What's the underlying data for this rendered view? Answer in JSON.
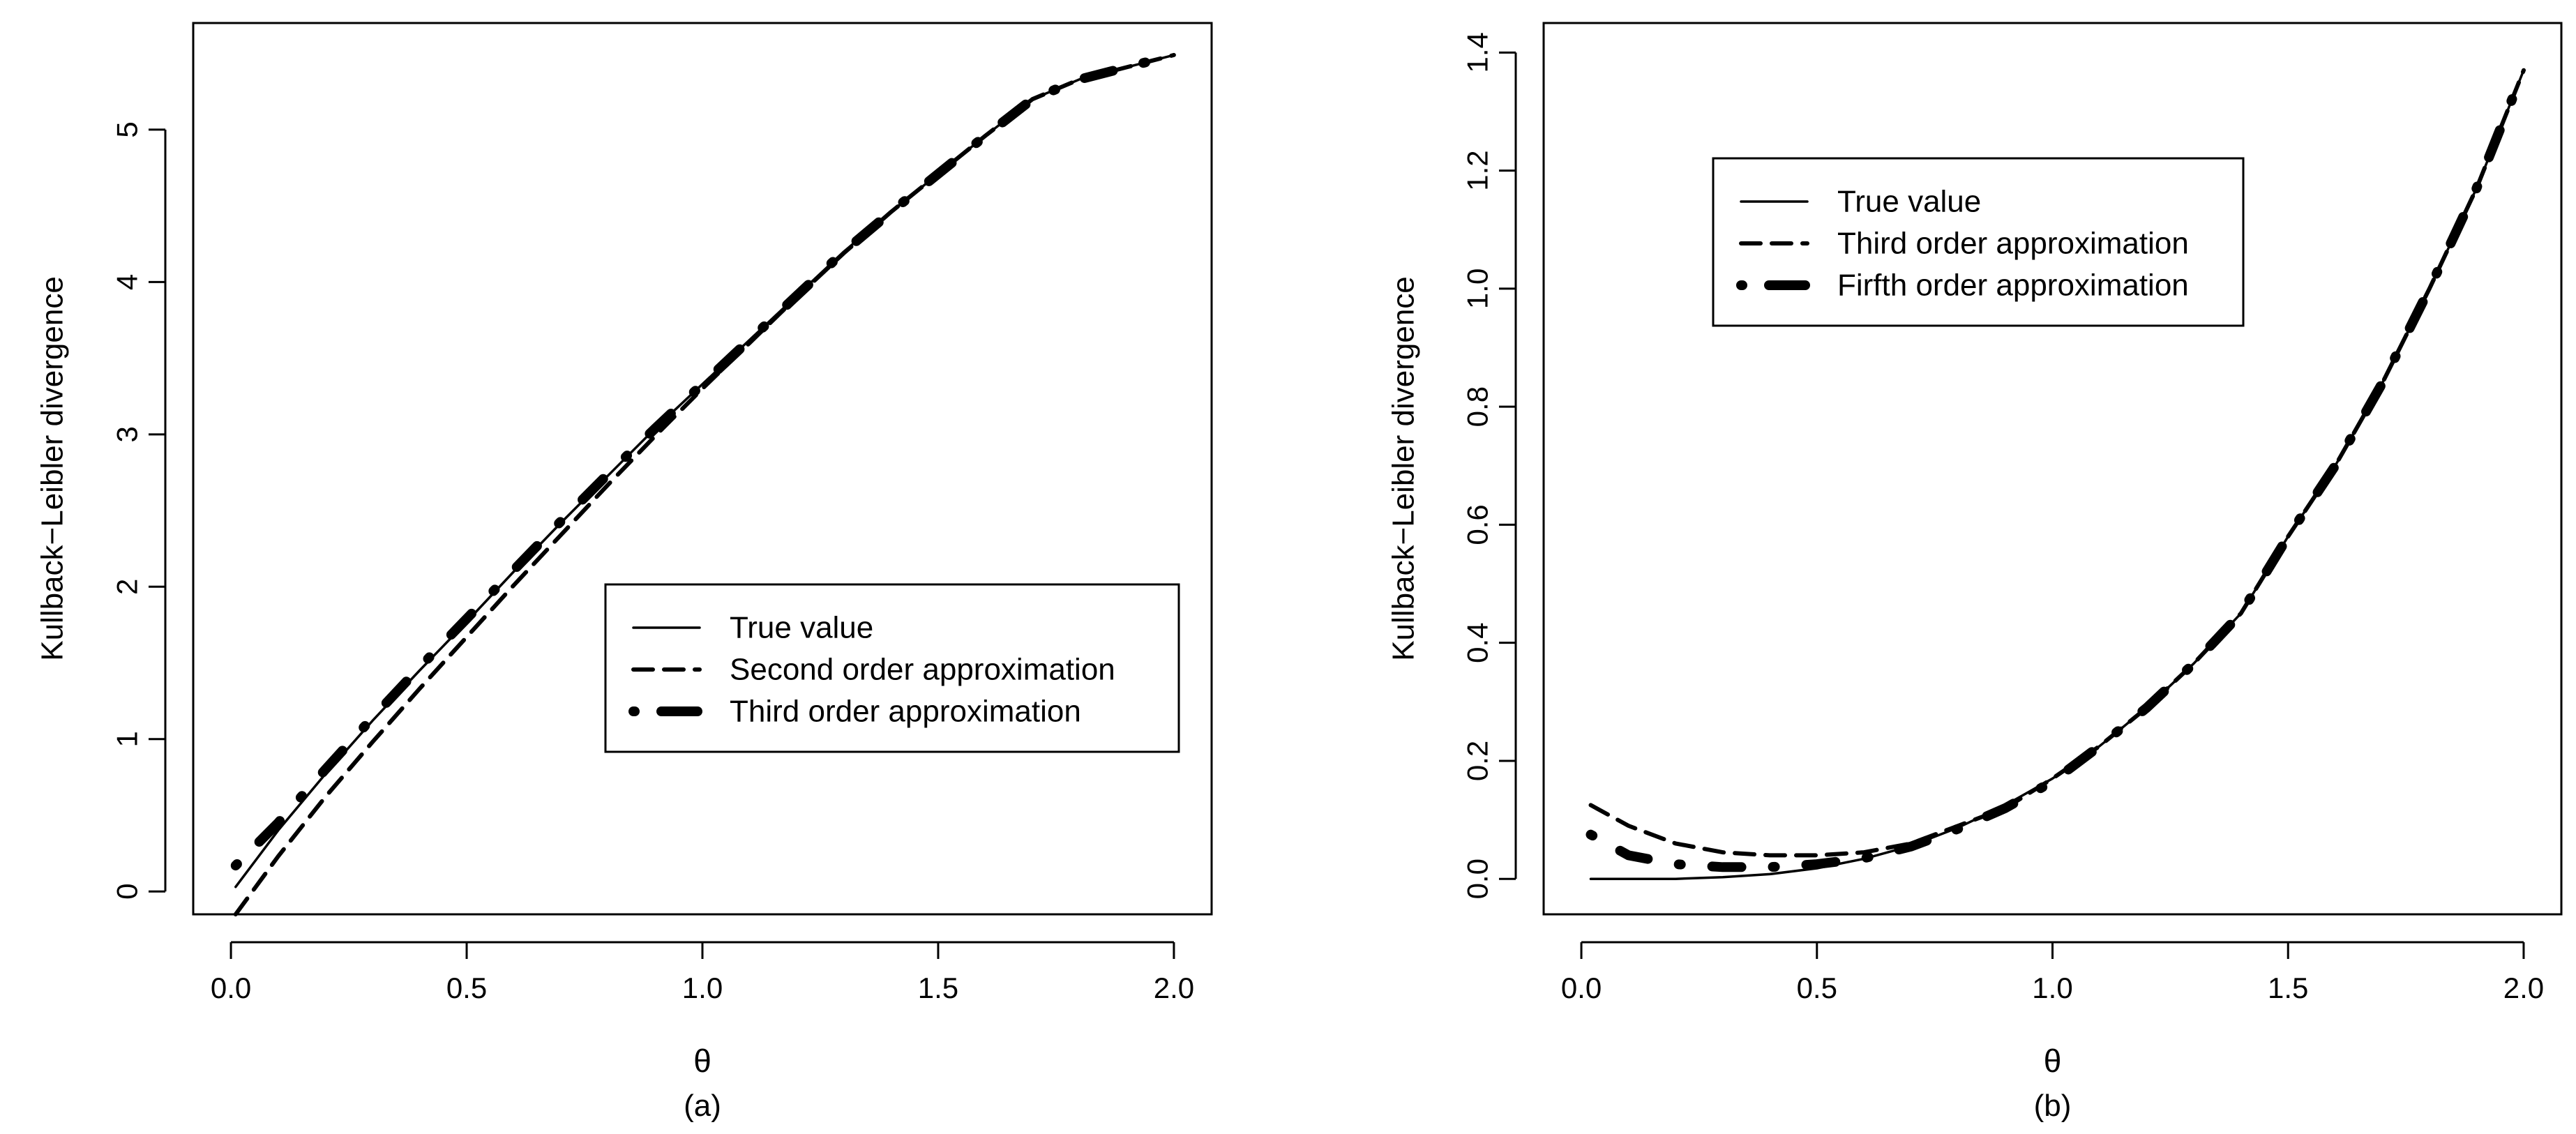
{
  "chart_data": [
    {
      "panel_label": "(a)",
      "type": "line",
      "title": "",
      "xlabel": "θ",
      "ylabel": "Kullback−Leibler divergence",
      "xlim": [
        -0.08,
        2.08
      ],
      "ylim": [
        -0.15,
        5.7
      ],
      "xticks": [
        0.0,
        0.5,
        1.0,
        1.5,
        2.0
      ],
      "xtick_labels": [
        "0.0",
        "0.5",
        "1.0",
        "1.5",
        "2.0"
      ],
      "yticks": [
        0,
        1,
        2,
        3,
        4,
        5
      ],
      "ytick_labels": [
        "0",
        "1",
        "2",
        "3",
        "4",
        "5"
      ],
      "grid": false,
      "legend_position": "lower-right",
      "x": [
        0.01,
        0.1,
        0.2,
        0.3,
        0.4,
        0.5,
        0.6,
        0.7,
        0.8,
        0.9,
        1.0,
        1.1,
        1.2,
        1.3,
        1.4,
        1.5,
        1.6,
        1.7,
        1.8,
        1.9,
        2.0
      ],
      "series": [
        {
          "name": "True value",
          "style": "solid",
          "values": [
            0.03,
            0.4,
            0.77,
            1.12,
            1.45,
            1.77,
            2.1,
            2.42,
            2.73,
            3.04,
            3.33,
            3.62,
            3.91,
            4.2,
            4.46,
            4.71,
            4.96,
            5.2,
            5.33,
            5.41,
            5.49
          ]
        },
        {
          "name": "Second order approximation",
          "style": "dashed",
          "values": [
            -0.15,
            0.23,
            0.62,
            0.98,
            1.33,
            1.67,
            2.01,
            2.34,
            2.67,
            2.99,
            3.3,
            3.6,
            3.9,
            4.19,
            4.46,
            4.71,
            4.96,
            5.2,
            5.33,
            5.41,
            5.49
          ]
        },
        {
          "name": "Third order approximation",
          "style": "dotdash",
          "values": [
            0.17,
            0.45,
            0.8,
            1.14,
            1.47,
            1.79,
            2.11,
            2.43,
            2.74,
            3.04,
            3.33,
            3.62,
            3.91,
            4.2,
            4.46,
            4.71,
            4.96,
            5.2,
            5.33,
            5.41,
            5.49
          ]
        }
      ]
    },
    {
      "panel_label": "(b)",
      "type": "line",
      "title": "",
      "xlabel": "θ",
      "ylabel": "Kullback−Leibler divergence",
      "xlim": [
        -0.08,
        2.08
      ],
      "ylim": [
        -0.06,
        1.45
      ],
      "xticks": [
        0.0,
        0.5,
        1.0,
        1.5,
        2.0
      ],
      "xtick_labels": [
        "0.0",
        "0.5",
        "1.0",
        "1.5",
        "2.0"
      ],
      "yticks": [
        0.0,
        0.2,
        0.4,
        0.6,
        0.8,
        1.0,
        1.2,
        1.4
      ],
      "ytick_labels": [
        "0.0",
        "0.2",
        "0.4",
        "0.6",
        "0.8",
        "1.0",
        "1.2",
        "1.4"
      ],
      "grid": false,
      "legend_position": "top-center",
      "x": [
        0.02,
        0.1,
        0.2,
        0.3,
        0.4,
        0.5,
        0.6,
        0.7,
        0.8,
        0.9,
        1.0,
        1.1,
        1.2,
        1.3,
        1.4,
        1.5,
        1.6,
        1.7,
        1.8,
        1.9,
        2.0
      ],
      "series": [
        {
          "name": "True value",
          "style": "solid",
          "values": [
            0.0,
            0.0,
            0.0,
            0.003,
            0.008,
            0.018,
            0.034,
            0.056,
            0.087,
            0.125,
            0.17,
            0.225,
            0.29,
            0.365,
            0.45,
            0.58,
            0.7,
            0.84,
            1.0,
            1.17,
            1.37
          ]
        },
        {
          "name": "Third order approximation",
          "style": "dashed",
          "values": [
            0.125,
            0.09,
            0.06,
            0.045,
            0.04,
            0.04,
            0.045,
            0.06,
            0.09,
            0.12,
            0.17,
            0.225,
            0.29,
            0.365,
            0.45,
            0.58,
            0.7,
            0.84,
            1.0,
            1.17,
            1.37
          ]
        },
        {
          "name": "Firfth order approximation",
          "style": "dotdash",
          "values": [
            0.075,
            0.04,
            0.025,
            0.02,
            0.02,
            0.025,
            0.035,
            0.055,
            0.085,
            0.12,
            0.165,
            0.225,
            0.29,
            0.365,
            0.45,
            0.58,
            0.7,
            0.84,
            1.0,
            1.17,
            1.37
          ]
        }
      ]
    }
  ]
}
